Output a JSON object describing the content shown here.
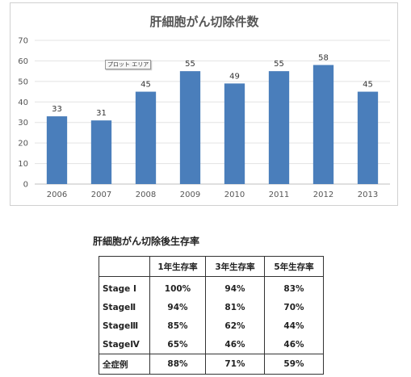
{
  "chart_data": {
    "type": "bar",
    "title": "肝細胞がん切除件数",
    "categories": [
      "2006",
      "2007",
      "2008",
      "2009",
      "2010",
      "2011",
      "2012",
      "2013"
    ],
    "values": [
      33,
      31,
      45,
      55,
      49,
      55,
      58,
      45
    ],
    "ylim": [
      0,
      70
    ],
    "yticks": [
      0,
      10,
      20,
      30,
      40,
      50,
      60,
      70
    ],
    "grid": true,
    "bar_color": "#4a7ebb",
    "xlabel": "",
    "ylabel": ""
  },
  "plot_area_tag": "プロット エリア",
  "table": {
    "title": "肝細胞がん切除後生存率",
    "headers": [
      "",
      "1年生存率",
      "3年生存率",
      "5年生存率"
    ],
    "rows": [
      {
        "label": "Stage Ⅰ",
        "values": [
          "100%",
          "94%",
          "83%"
        ]
      },
      {
        "label": "StageⅡ",
        "values": [
          "94%",
          "81%",
          "70%"
        ]
      },
      {
        "label": "StageⅢ",
        "values": [
          "85%",
          "62%",
          "44%"
        ]
      },
      {
        "label": "StageⅣ",
        "values": [
          "65%",
          "46%",
          "46%"
        ]
      }
    ],
    "total": {
      "label": "全症例",
      "values": [
        "88%",
        "71%",
        "59%"
      ]
    }
  }
}
